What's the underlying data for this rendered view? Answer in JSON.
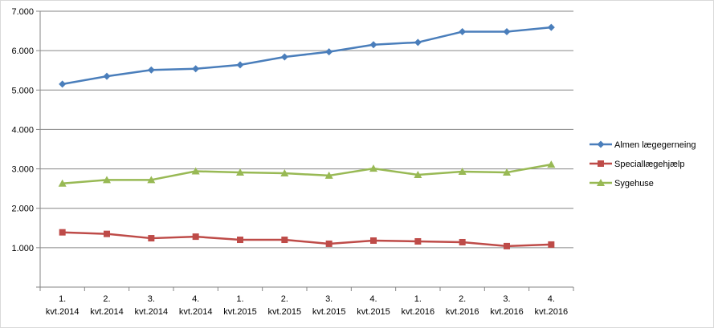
{
  "chart_data": {
    "type": "line",
    "title": "",
    "xlabel": "",
    "ylabel": "",
    "categories": [
      [
        "1.",
        "kvt.2014"
      ],
      [
        "2.",
        "kvt.2014"
      ],
      [
        "3.",
        "kvt.2014"
      ],
      [
        "4.",
        "kvt.2014"
      ],
      [
        "1.",
        "kvt.2015"
      ],
      [
        "2.",
        "kvt.2015"
      ],
      [
        "3.",
        "kvt.2015"
      ],
      [
        "4.",
        "kvt.2015"
      ],
      [
        "1.",
        "kvt.2016"
      ],
      [
        "2.",
        "kvt.2016"
      ],
      [
        "3.",
        "kvt.2016"
      ],
      [
        "4.",
        "kvt.2016"
      ]
    ],
    "ylim": [
      0,
      7000
    ],
    "yticks": [
      1000,
      2000,
      3000,
      4000,
      5000,
      6000,
      7000
    ],
    "ytick_labels": [
      "1.000",
      "2.000",
      "3.000",
      "4.000",
      "5.000",
      "6.000",
      "7.000"
    ],
    "grid": true,
    "legend_position": "right",
    "series": [
      {
        "name": "Almen lægegerneing",
        "color": "#4a7ebb",
        "marker": "diamond",
        "values": [
          5150,
          5350,
          5510,
          5540,
          5640,
          5840,
          5970,
          6150,
          6210,
          6480,
          6480,
          6590
        ]
      },
      {
        "name": "Speciallægehjælp",
        "color": "#be4b48",
        "marker": "square",
        "values": [
          1390,
          1350,
          1240,
          1280,
          1200,
          1200,
          1100,
          1180,
          1160,
          1140,
          1040,
          1080
        ]
      },
      {
        "name": "Sygehuse",
        "color": "#98b954",
        "marker": "triangle",
        "values": [
          2630,
          2720,
          2720,
          2940,
          2910,
          2890,
          2830,
          3010,
          2850,
          2930,
          2910,
          3110
        ]
      }
    ]
  }
}
